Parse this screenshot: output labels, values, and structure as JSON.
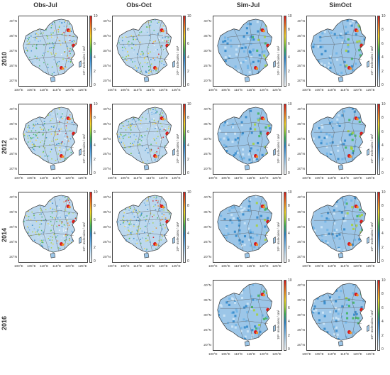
{
  "columns": [
    "Obs-Jul",
    "Obs-Oct",
    "Sim-Jul",
    "SimOct"
  ],
  "rows": [
    "2010",
    "2012",
    "2014",
    "2016"
  ],
  "colorbar": {
    "ticks": [
      "0",
      "2",
      "4",
      "6",
      "8",
      "10"
    ],
    "unit_label": "10¹⁴ molecules / cm²",
    "colors": [
      "#ffffff",
      "#cfe6f7",
      "#6fb3e6",
      "#2f86c9",
      "#3fb35a",
      "#a6d13b",
      "#f3d22b",
      "#f08a24",
      "#d7191c"
    ]
  },
  "axes": {
    "lat_labels": [
      "40°N",
      "35°N",
      "30°N",
      "25°N",
      "20°N"
    ],
    "lon_labels": [
      "100°E",
      "105°E",
      "110°E",
      "115°E",
      "120°E",
      "125°E"
    ]
  },
  "panels": [
    {
      "row": "2010",
      "column": "Obs-Jul",
      "kind": "obs"
    },
    {
      "row": "2010",
      "column": "Obs-Oct",
      "kind": "obs"
    },
    {
      "row": "2010",
      "column": "Sim-Jul",
      "kind": "sim"
    },
    {
      "row": "2010",
      "column": "SimOct",
      "kind": "sim"
    },
    {
      "row": "2012",
      "column": "Obs-Jul",
      "kind": "obs"
    },
    {
      "row": "2012",
      "column": "Obs-Oct",
      "kind": "obs"
    },
    {
      "row": "2012",
      "column": "Sim-Jul",
      "kind": "sim"
    },
    {
      "row": "2012",
      "column": "SimOct",
      "kind": "sim"
    },
    {
      "row": "2014",
      "column": "Obs-Jul",
      "kind": "obs"
    },
    {
      "row": "2014",
      "column": "Obs-Oct",
      "kind": "obs"
    },
    {
      "row": "2014",
      "column": "Sim-Jul",
      "kind": "sim"
    },
    {
      "row": "2014",
      "column": "SimOct",
      "kind": "sim"
    },
    {
      "row": "2016",
      "column": "Sim-Jul",
      "kind": "sim"
    },
    {
      "row": "2016",
      "column": "SimOct",
      "kind": "sim"
    }
  ]
}
